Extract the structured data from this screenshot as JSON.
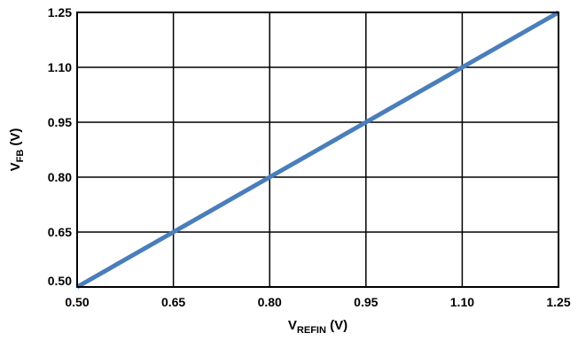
{
  "chart_data": {
    "type": "line",
    "xlabel": {
      "main": "V",
      "sub": "REFIN",
      "unit": " (V)"
    },
    "ylabel": {
      "main": "V",
      "sub": "FB",
      "unit": " (V)"
    },
    "xlim": [
      0.5,
      1.25
    ],
    "ylim": [
      0.5,
      1.25
    ],
    "x_ticks": [
      0.5,
      0.65,
      0.8,
      0.95,
      1.1,
      1.25
    ],
    "y_ticks": [
      0.5,
      0.65,
      0.8,
      0.95,
      1.1,
      1.25
    ],
    "x_tick_labels": [
      "0.50",
      "0.65",
      "0.80",
      "0.95",
      "1.10",
      "1.25"
    ],
    "y_tick_labels": [
      "0.50",
      "0.65",
      "0.80",
      "0.95",
      "1.10",
      "1.25"
    ],
    "grid": true,
    "series": [
      {
        "x": [
          0.5,
          0.65,
          0.8,
          0.95,
          1.1,
          1.25
        ],
        "y": [
          0.5,
          0.65,
          0.8,
          0.95,
          1.1,
          1.25
        ],
        "color": "#4a7ebb"
      }
    ]
  }
}
